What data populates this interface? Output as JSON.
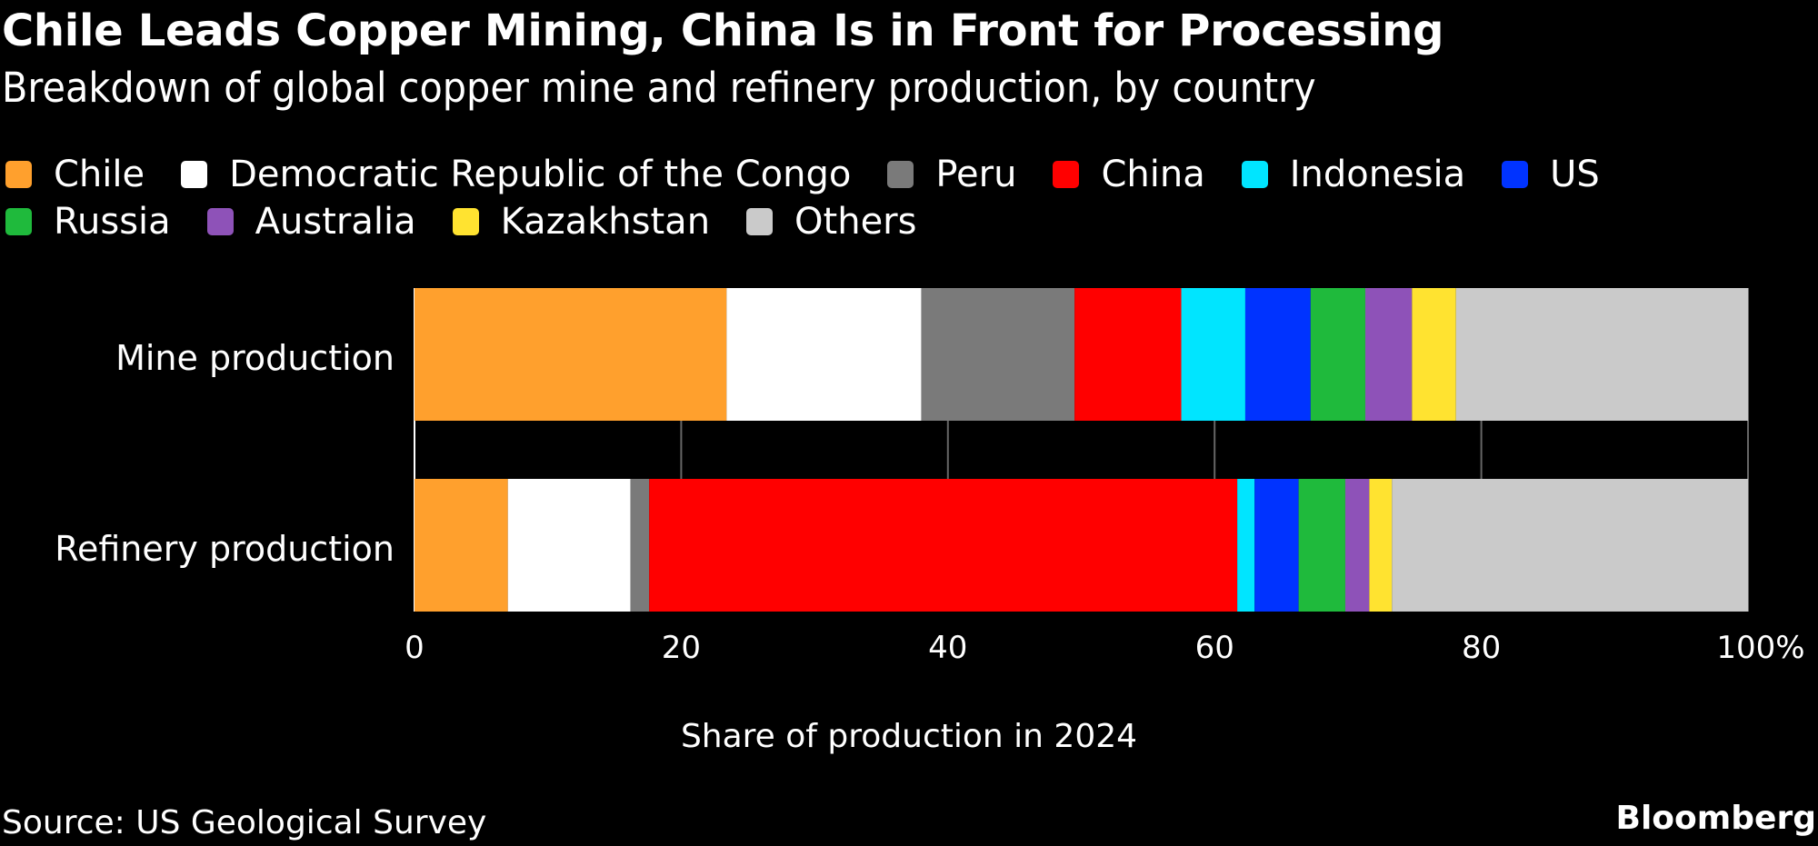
{
  "header": {
    "title": "Chile Leads Copper Mining, China Is in Front for Processing",
    "subtitle": "Breakdown of global copper mine and refinery production, by country"
  },
  "footer": {
    "source": "Source: US Geological Survey",
    "brand": "Bloomberg"
  },
  "chart_data": {
    "type": "bar",
    "orientation": "horizontal",
    "stacked": true,
    "title": "Chile Leads Copper Mining, China Is in Front for Processing",
    "subtitle": "Breakdown of global copper mine and refinery production, by country",
    "xlabel": "Share of production in 2024",
    "ylabel": "",
    "xlim": [
      0,
      100
    ],
    "xticks": [
      0,
      20,
      40,
      60,
      80,
      100
    ],
    "xtick_labels": [
      "0",
      "20",
      "40",
      "60",
      "80",
      "100%"
    ],
    "grid": true,
    "legend_position": "top",
    "categories": [
      "Mine production",
      "Refinery production"
    ],
    "series": [
      {
        "name": "Chile",
        "color": "#ffa02d",
        "values": [
          23.4,
          7.0
        ]
      },
      {
        "name": "Democratic Republic of the Congo",
        "color": "#ffffff",
        "values": [
          14.6,
          9.2
        ]
      },
      {
        "name": "Peru",
        "color": "#7a7a7a",
        "values": [
          11.5,
          1.4
        ]
      },
      {
        "name": "China",
        "color": "#ff0000",
        "values": [
          8.0,
          44.1
        ]
      },
      {
        "name": "Indonesia",
        "color": "#00e5ff",
        "values": [
          4.8,
          1.3
        ]
      },
      {
        "name": "US",
        "color": "#0033ff",
        "values": [
          4.9,
          3.3
        ]
      },
      {
        "name": "Russia",
        "color": "#1fba3c",
        "values": [
          4.1,
          3.5
        ]
      },
      {
        "name": "Australia",
        "color": "#8e52b8",
        "values": [
          3.5,
          1.8
        ]
      },
      {
        "name": "Kazakhstan",
        "color": "#ffe330",
        "values": [
          3.3,
          1.7
        ]
      },
      {
        "name": "Others",
        "color": "#cacaca",
        "values": [
          21.9,
          26.7
        ]
      }
    ],
    "source": "Source: US Geological Survey"
  }
}
